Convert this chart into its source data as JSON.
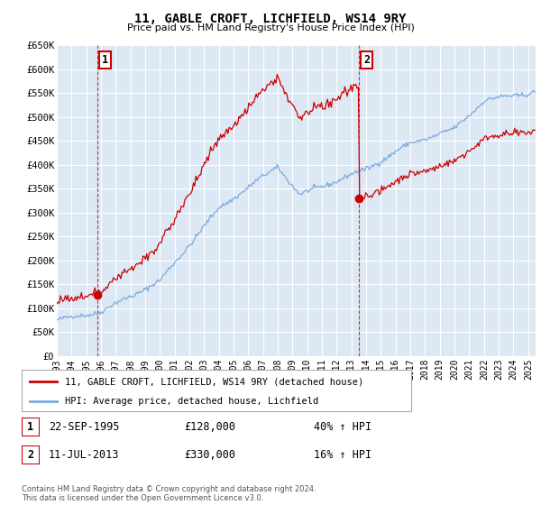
{
  "title": "11, GABLE CROFT, LICHFIELD, WS14 9RY",
  "subtitle": "Price paid vs. HM Land Registry's House Price Index (HPI)",
  "ylabel_ticks": [
    "£0",
    "£50K",
    "£100K",
    "£150K",
    "£200K",
    "£250K",
    "£300K",
    "£350K",
    "£400K",
    "£450K",
    "£500K",
    "£550K",
    "£600K",
    "£650K"
  ],
  "ytick_vals": [
    0,
    50000,
    100000,
    150000,
    200000,
    250000,
    300000,
    350000,
    400000,
    450000,
    500000,
    550000,
    600000,
    650000
  ],
  "ylim": [
    0,
    650000
  ],
  "sale1_date": 1995.73,
  "sale1_price": 128000,
  "sale2_date": 2013.53,
  "sale2_price": 330000,
  "hpi_color": "#7aaadd",
  "price_color": "#cc0000",
  "annotation_box_color": "#cc0000",
  "bg_color": "#dde8f5",
  "legend_label_price": "11, GABLE CROFT, LICHFIELD, WS14 9RY (detached house)",
  "legend_label_hpi": "HPI: Average price, detached house, Lichfield",
  "footnote": "Contains HM Land Registry data © Crown copyright and database right 2024.\nThis data is licensed under the Open Government Licence v3.0.",
  "table_row1": [
    "1",
    "22-SEP-1995",
    "£128,000",
    "40% ↑ HPI"
  ],
  "table_row2": [
    "2",
    "11-JUL-2013",
    "£330,000",
    "16% ↑ HPI"
  ],
  "xmin": 1993.0,
  "xmax": 2025.5,
  "xtick_start": 1993,
  "xtick_end": 2025
}
